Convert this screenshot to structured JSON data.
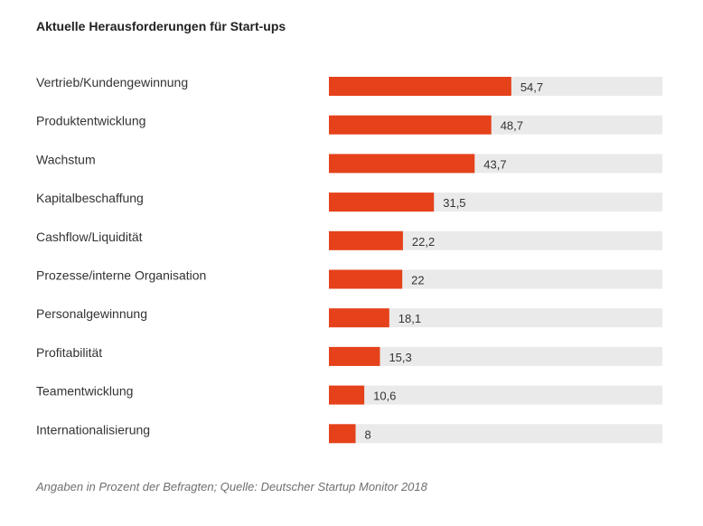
{
  "chart_data": {
    "type": "bar",
    "orientation": "horizontal",
    "title": "Aktuelle Herausforderungen für Start-ups",
    "categories": [
      "Vertrieb/Kundengewinnung",
      "Produktentwicklung",
      "Wachstum",
      "Kapitalbeschaffung",
      "Cashflow/Liquidität",
      "Prozesse/interne Organisation",
      "Personalgewinnung",
      "Profitabilität",
      "Teamentwicklung",
      "Internationalisierung"
    ],
    "values": [
      54.7,
      48.7,
      43.7,
      31.5,
      22.2,
      22,
      18.1,
      15.3,
      10.6,
      8
    ],
    "value_labels": [
      "54,7",
      "48,7",
      "43,7",
      "31,5",
      "22,2",
      "22",
      "18,1",
      "15,3",
      "10,6",
      "8"
    ],
    "xlim": [
      0,
      100
    ],
    "grid": false,
    "legend": "none",
    "bar_color": "#e5411a",
    "track_color": "#eaeaea",
    "source": "Angaben in Prozent der Befragten; Quelle: Deutscher Startup Monitor 2018"
  }
}
